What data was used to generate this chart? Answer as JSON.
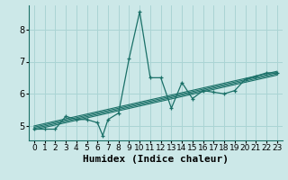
{
  "xlabel": "Humidex (Indice chaleur)",
  "background_color": "#cce8e8",
  "line_color": "#1a7068",
  "grid_color": "#aad4d4",
  "xlim": [
    -0.5,
    23.5
  ],
  "ylim": [
    4.55,
    8.75
  ],
  "yticks": [
    5,
    6,
    7,
    8
  ],
  "xticks": [
    0,
    1,
    2,
    3,
    4,
    5,
    6,
    7,
    8,
    9,
    10,
    11,
    12,
    13,
    14,
    15,
    16,
    17,
    18,
    19,
    20,
    21,
    22,
    23
  ],
  "series": [
    [
      0,
      4.9
    ],
    [
      1,
      4.9
    ],
    [
      2,
      4.9
    ],
    [
      3,
      5.3
    ],
    [
      4,
      5.2
    ],
    [
      5,
      5.2
    ],
    [
      6,
      5.1
    ],
    [
      6.5,
      4.7
    ],
    [
      7,
      5.2
    ],
    [
      8,
      5.4
    ],
    [
      9,
      7.1
    ],
    [
      10,
      8.55
    ],
    [
      11,
      6.5
    ],
    [
      12,
      6.5
    ],
    [
      13,
      5.55
    ],
    [
      14,
      6.35
    ],
    [
      15,
      5.85
    ],
    [
      16,
      6.1
    ],
    [
      17,
      6.05
    ],
    [
      18,
      6.0
    ],
    [
      19,
      6.1
    ],
    [
      20,
      6.45
    ],
    [
      21,
      6.55
    ],
    [
      22,
      6.65
    ],
    [
      23,
      6.65
    ]
  ],
  "regression_lines": [
    {
      "x": [
        0,
        23
      ],
      "y": [
        4.88,
        6.58
      ]
    },
    {
      "x": [
        0,
        23
      ],
      "y": [
        4.92,
        6.62
      ]
    },
    {
      "x": [
        0,
        23
      ],
      "y": [
        4.96,
        6.66
      ]
    },
    {
      "x": [
        0,
        23
      ],
      "y": [
        5.0,
        6.7
      ]
    }
  ],
  "tick_fontsize": 6.5,
  "xlabel_fontsize": 8,
  "spine_color": "#1a7068"
}
